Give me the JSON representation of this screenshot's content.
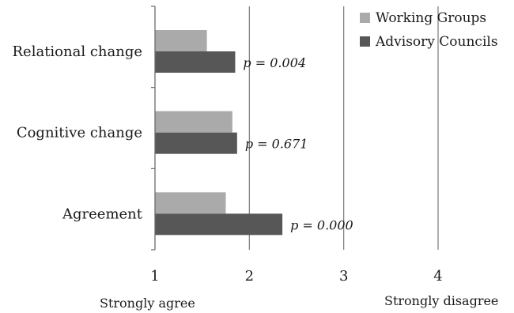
{
  "chart_data": {
    "type": "bar",
    "orientation": "horizontal",
    "categories": [
      "Relational change",
      "Cognitive change",
      "Agreement"
    ],
    "series": [
      {
        "name": "Working Groups",
        "values": [
          1.55,
          1.82,
          1.75
        ]
      },
      {
        "name": "Advisory Councils",
        "values": [
          1.85,
          1.87,
          2.35
        ]
      }
    ],
    "p_values": [
      "p = 0.004",
      "p = 0.671",
      "p = 0.000"
    ],
    "xlim": [
      1,
      4
    ],
    "x_ticks": [
      "1",
      "2",
      "3",
      "4"
    ],
    "scale_anchors": {
      "low": "Strongly agree",
      "high": "Strongly disagree"
    },
    "grid": "vertical",
    "legend_position": "top-right",
    "colors": {
      "Working Groups": "#aaaaaa",
      "Advisory Councils": "#575757"
    }
  }
}
